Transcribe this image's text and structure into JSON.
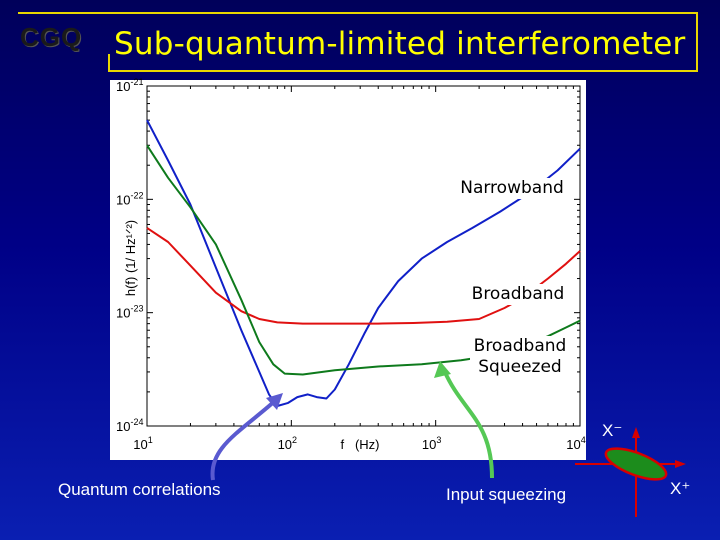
{
  "slide": {
    "logo_text": "CGQ",
    "title": "Sub-quantum-limited interferometer",
    "annotations": {
      "quantum_correlations": "Quantum correlations",
      "input_squeezing": "Input squeezing"
    },
    "phase_space": {
      "x_minus": "X⁻",
      "x_plus": "X⁺",
      "ellipse_fill": "#1c8c1c",
      "ellipse_stroke": "#d80000"
    },
    "colors": {
      "title": "#ffff00",
      "frame": "#e8d800",
      "arrow_blue": "#5a5ad0",
      "arrow_green": "#55c855"
    }
  },
  "chart_data": {
    "type": "line",
    "title": "",
    "xlabel": "f   (Hz)",
    "ylabel": "h(f) (1/ Hz¹ᐟ²)",
    "x_scale": "log",
    "y_scale": "log",
    "xlim": [
      10,
      10000
    ],
    "ylim": [
      1e-24,
      1e-21
    ],
    "grid": false,
    "legend": "in-plot labels (right side)",
    "x_ticks": [
      {
        "value": 10,
        "base": "10",
        "exp": "1"
      },
      {
        "value": 100,
        "base": "10",
        "exp": "2"
      },
      {
        "value": 1000,
        "base": "10",
        "exp": "3"
      },
      {
        "value": 10000,
        "base": "10",
        "exp": "4"
      }
    ],
    "y_ticks": [
      {
        "value": 1e-21,
        "base": "10",
        "exp": "-21"
      },
      {
        "value": 1e-22,
        "base": "10",
        "exp": "-22"
      },
      {
        "value": 1e-23,
        "base": "10",
        "exp": "-23"
      },
      {
        "value": 1e-24,
        "base": "10",
        "exp": "-24"
      }
    ],
    "series": [
      {
        "name": "Narrowband",
        "color": "#1020c8",
        "points": [
          [
            10,
            5e-22
          ],
          [
            14,
            2.2e-22
          ],
          [
            20,
            9e-23
          ],
          [
            30,
            2.5e-23
          ],
          [
            45,
            7e-24
          ],
          [
            60,
            3e-24
          ],
          [
            70,
            1.9e-24
          ],
          [
            80,
            1.5e-24
          ],
          [
            95,
            1.6e-24
          ],
          [
            110,
            1.8e-24
          ],
          [
            130,
            1.9e-24
          ],
          [
            150,
            1.8e-24
          ],
          [
            175,
            1.75e-24
          ],
          [
            200,
            2.1e-24
          ],
          [
            250,
            3.5e-24
          ],
          [
            320,
            6.5e-24
          ],
          [
            400,
            1.1e-23
          ],
          [
            550,
            1.9e-23
          ],
          [
            800,
            3e-23
          ],
          [
            1200,
            4.2e-23
          ],
          [
            1800,
            5.6e-23
          ],
          [
            2800,
            7.8e-23
          ],
          [
            4500,
            1.15e-22
          ],
          [
            7000,
            1.8e-22
          ],
          [
            10000,
            2.8e-22
          ]
        ]
      },
      {
        "name": "Broadband",
        "color": "#e01010",
        "points": [
          [
            10,
            5.6e-23
          ],
          [
            14,
            4.2e-23
          ],
          [
            20,
            2.6e-23
          ],
          [
            30,
            1.5e-23
          ],
          [
            45,
            1.03e-23
          ],
          [
            60,
            8.8e-24
          ],
          [
            80,
            8.2e-24
          ],
          [
            120,
            8e-24
          ],
          [
            200,
            8e-24
          ],
          [
            400,
            8e-24
          ],
          [
            700,
            8.1e-24
          ],
          [
            1200,
            8.3e-24
          ],
          [
            2000,
            8.8e-24
          ],
          [
            3000,
            1.1e-23
          ],
          [
            4000,
            1.35e-23
          ],
          [
            6000,
            2e-23
          ],
          [
            8000,
            2.7e-23
          ],
          [
            10000,
            3.5e-23
          ]
        ]
      },
      {
        "name": "Broadband\nSqueezed",
        "color": "#0e7a1c",
        "points": [
          [
            10,
            3e-22
          ],
          [
            14,
            1.55e-22
          ],
          [
            20,
            8.5e-23
          ],
          [
            30,
            4e-23
          ],
          [
            45,
            1.3e-23
          ],
          [
            60,
            5.5e-24
          ],
          [
            75,
            3.5e-24
          ],
          [
            90,
            2.9e-24
          ],
          [
            120,
            2.85e-24
          ],
          [
            200,
            3.1e-24
          ],
          [
            400,
            3.35e-24
          ],
          [
            800,
            3.5e-24
          ],
          [
            1500,
            3.8e-24
          ],
          [
            2500,
            4.2e-24
          ],
          [
            4000,
            5e-24
          ],
          [
            6000,
            6.2e-24
          ],
          [
            8000,
            7.4e-24
          ],
          [
            10000,
            8.5e-24
          ]
        ]
      }
    ]
  }
}
